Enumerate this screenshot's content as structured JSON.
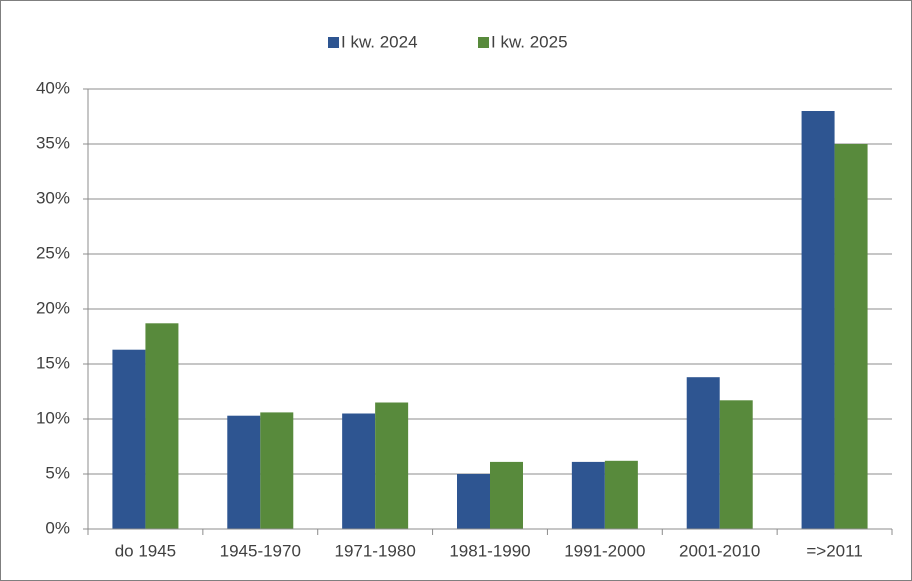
{
  "chart_data": {
    "type": "bar",
    "categories": [
      "do 1945",
      "1945-1970",
      "1971-1980",
      "1981-1990",
      "1991-2000",
      "2001-2010",
      "=>2011"
    ],
    "series": [
      {
        "name": "I kw. 2024",
        "color": "#2e5591",
        "values": [
          16.3,
          10.3,
          10.5,
          5.0,
          6.1,
          13.8,
          38.0
        ]
      },
      {
        "name": "I kw. 2025",
        "color": "#588a3c",
        "values": [
          18.7,
          10.6,
          11.5,
          6.1,
          6.2,
          11.7,
          35.0
        ]
      }
    ],
    "ylim": [
      0,
      40
    ],
    "yticks": [
      {
        "value": 0,
        "label": "0%"
      },
      {
        "value": 5,
        "label": "5%"
      },
      {
        "value": 10,
        "label": "10%"
      },
      {
        "value": 15,
        "label": "15%"
      },
      {
        "value": 20,
        "label": "20%"
      },
      {
        "value": 25,
        "label": "25%"
      },
      {
        "value": 30,
        "label": "30%"
      },
      {
        "value": 35,
        "label": "35%"
      },
      {
        "value": 40,
        "label": "40%"
      }
    ],
    "grid": true,
    "legend": "top"
  }
}
